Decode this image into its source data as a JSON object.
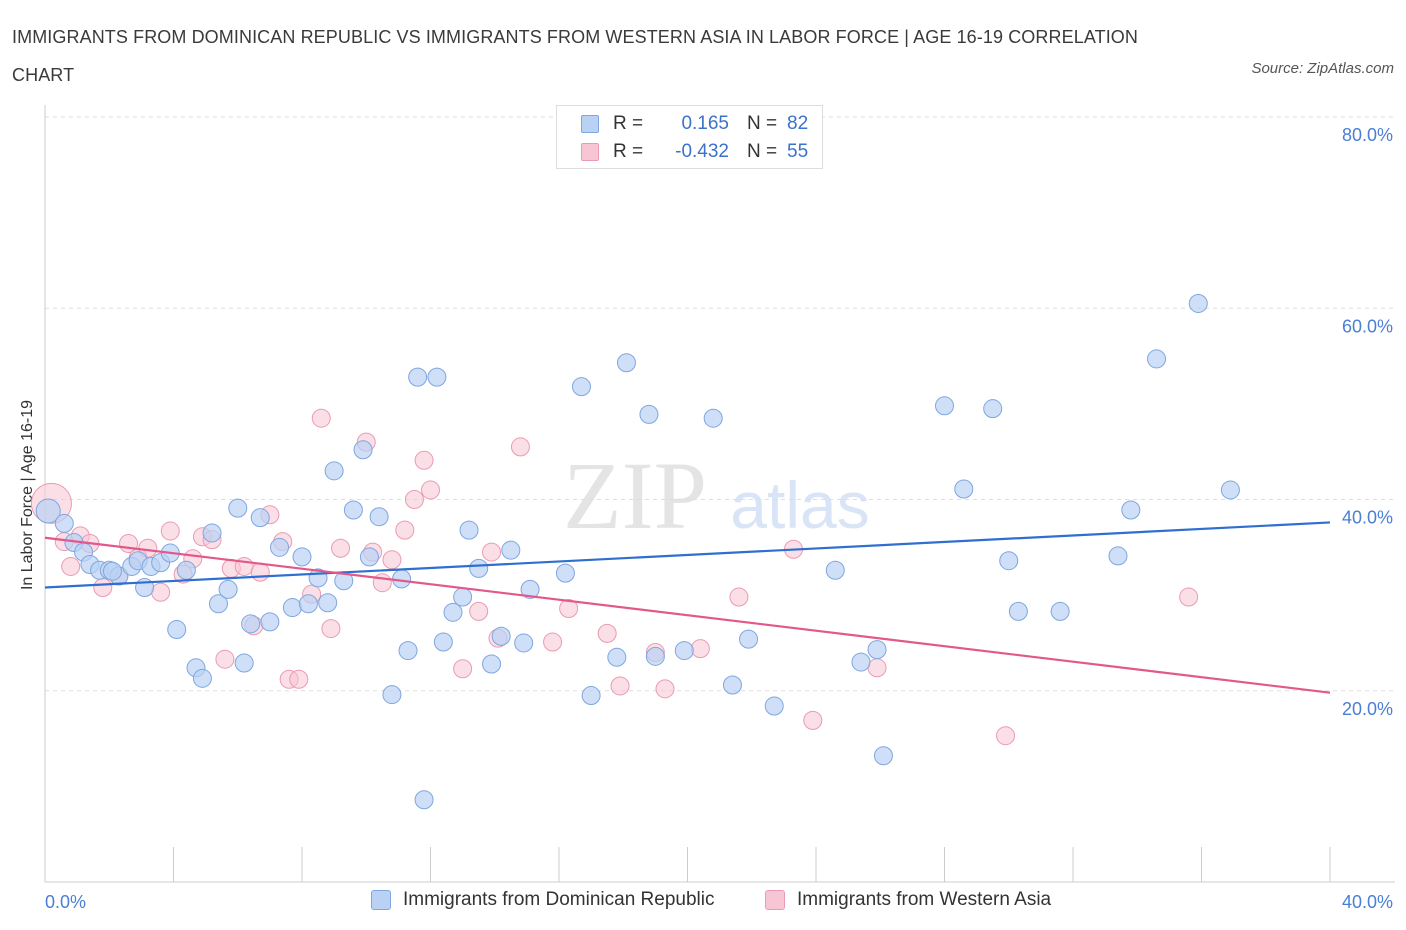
{
  "title": "IMMIGRANTS FROM DOMINICAN REPUBLIC VS IMMIGRANTS FROM WESTERN ASIA IN LABOR FORCE | AGE 16-19 CORRELATION CHART",
  "source": "Source: ZipAtlas.com",
  "watermark": {
    "zip": "ZIP",
    "atlas": "atlas"
  },
  "legend": {
    "rows": [
      {
        "r_label": "R =",
        "r_value": "0.165",
        "n_label": "N =",
        "n_value": "82"
      },
      {
        "r_label": "R =",
        "r_value": "-0.432",
        "n_label": "N =",
        "n_value": "55"
      }
    ]
  },
  "colors": {
    "blue_fill": "#b9d1f3",
    "blue_stroke": "#7fa6e0",
    "blue_line": "#2f6fcf",
    "pink_fill": "#f8c5d4",
    "pink_stroke": "#eb9ab3",
    "pink_line": "#e2588a",
    "grid": "#dddddd",
    "tick_text": "#4a7fd4"
  },
  "chart_data": {
    "type": "scatter",
    "title": "IMMIGRANTS FROM DOMINICAN REPUBLIC VS IMMIGRANTS FROM WESTERN ASIA IN LABOR FORCE | AGE 16-19 CORRELATION CHART",
    "xlabel": "",
    "ylabel": "In Labor Force | Age 16-19",
    "xlim": [
      0,
      40
    ],
    "ylim": [
      0,
      80
    ],
    "x_tick_labels": [
      "0.0%",
      "40.0%"
    ],
    "y_ticks": [
      20,
      40,
      60,
      80
    ],
    "y_tick_labels": [
      "20.0%",
      "40.0%",
      "60.0%",
      "80.0%"
    ],
    "grid": true,
    "legend_position": "top-center",
    "series": [
      {
        "name": "Immigrants from Dominican Republic",
        "color": "#7fa6e0",
        "trend": {
          "x": [
            0,
            40
          ],
          "y": [
            30.8,
            37.6
          ]
        },
        "points": [
          [
            0.1,
            38.8
          ],
          [
            0.6,
            37.5
          ],
          [
            0.9,
            35.5
          ],
          [
            1.2,
            34.5
          ],
          [
            1.4,
            33.2
          ],
          [
            1.7,
            32.6
          ],
          [
            2.0,
            32.6
          ],
          [
            2.3,
            32.0
          ],
          [
            2.7,
            33.0
          ],
          [
            2.9,
            33.6
          ],
          [
            3.1,
            30.8
          ],
          [
            3.3,
            33.0
          ],
          [
            3.6,
            33.4
          ],
          [
            3.9,
            34.4
          ],
          [
            4.1,
            26.4
          ],
          [
            4.4,
            32.6
          ],
          [
            4.7,
            22.4
          ],
          [
            4.9,
            21.3
          ],
          [
            5.2,
            36.5
          ],
          [
            5.4,
            29.1
          ],
          [
            5.7,
            30.6
          ],
          [
            6.0,
            39.1
          ],
          [
            6.2,
            22.9
          ],
          [
            6.4,
            27.0
          ],
          [
            6.7,
            38.1
          ],
          [
            7.0,
            27.2
          ],
          [
            7.3,
            35.0
          ],
          [
            7.7,
            28.7
          ],
          [
            8.0,
            34.0
          ],
          [
            8.2,
            29.1
          ],
          [
            8.5,
            31.8
          ],
          [
            8.8,
            29.2
          ],
          [
            9.0,
            43.0
          ],
          [
            9.3,
            31.5
          ],
          [
            9.6,
            38.9
          ],
          [
            9.9,
            45.2
          ],
          [
            10.1,
            34.0
          ],
          [
            10.4,
            38.2
          ],
          [
            10.8,
            19.6
          ],
          [
            11.1,
            31.7
          ],
          [
            11.3,
            24.2
          ],
          [
            11.6,
            52.8
          ],
          [
            11.8,
            8.6
          ],
          [
            12.2,
            52.8
          ],
          [
            12.4,
            25.1
          ],
          [
            12.7,
            28.2
          ],
          [
            13.0,
            29.8
          ],
          [
            13.2,
            36.8
          ],
          [
            13.5,
            32.8
          ],
          [
            13.9,
            22.8
          ],
          [
            14.2,
            25.7
          ],
          [
            14.5,
            34.7
          ],
          [
            14.9,
            25.0
          ],
          [
            15.1,
            30.6
          ],
          [
            16.2,
            32.3
          ],
          [
            16.7,
            51.8
          ],
          [
            17.0,
            19.5
          ],
          [
            17.8,
            23.5
          ],
          [
            18.1,
            54.3
          ],
          [
            18.8,
            48.9
          ],
          [
            19.0,
            23.6
          ],
          [
            19.9,
            24.2
          ],
          [
            20.8,
            48.5
          ],
          [
            21.4,
            20.6
          ],
          [
            21.9,
            25.4
          ],
          [
            22.7,
            18.4
          ],
          [
            24.6,
            32.6
          ],
          [
            25.4,
            23.0
          ],
          [
            25.9,
            24.3
          ],
          [
            26.1,
            13.2
          ],
          [
            28.0,
            49.8
          ],
          [
            28.6,
            41.1
          ],
          [
            29.5,
            49.5
          ],
          [
            30.0,
            33.6
          ],
          [
            30.3,
            28.3
          ],
          [
            31.6,
            28.3
          ],
          [
            33.4,
            34.1
          ],
          [
            33.8,
            38.9
          ],
          [
            34.6,
            54.7
          ],
          [
            35.9,
            60.5
          ],
          [
            36.9,
            41.0
          ],
          [
            2.1,
            32.5
          ]
        ]
      },
      {
        "name": "Immigrants from Western Asia",
        "color": "#eb9ab3",
        "trend": {
          "x": [
            0,
            40
          ],
          "y": [
            36.0,
            19.8
          ]
        },
        "points": [
          [
            0.2,
            39.6
          ],
          [
            0.6,
            35.6
          ],
          [
            0.8,
            33.0
          ],
          [
            1.1,
            36.2
          ],
          [
            1.4,
            35.4
          ],
          [
            1.8,
            30.8
          ],
          [
            2.3,
            32.0
          ],
          [
            2.6,
            35.4
          ],
          [
            2.9,
            33.9
          ],
          [
            3.2,
            34.9
          ],
          [
            3.6,
            30.3
          ],
          [
            3.9,
            36.7
          ],
          [
            4.3,
            32.2
          ],
          [
            4.6,
            33.8
          ],
          [
            4.9,
            36.1
          ],
          [
            5.2,
            35.8
          ],
          [
            5.6,
            23.3
          ],
          [
            5.8,
            32.8
          ],
          [
            6.2,
            33.0
          ],
          [
            6.5,
            26.8
          ],
          [
            6.7,
            32.4
          ],
          [
            7.0,
            38.4
          ],
          [
            7.4,
            35.6
          ],
          [
            7.6,
            21.2
          ],
          [
            7.9,
            21.2
          ],
          [
            8.3,
            30.1
          ],
          [
            8.6,
            48.5
          ],
          [
            8.9,
            26.5
          ],
          [
            9.2,
            34.9
          ],
          [
            10.0,
            46.0
          ],
          [
            10.2,
            34.5
          ],
          [
            10.5,
            31.3
          ],
          [
            10.8,
            33.7
          ],
          [
            11.2,
            36.8
          ],
          [
            11.5,
            40.0
          ],
          [
            11.8,
            44.1
          ],
          [
            12.0,
            41.0
          ],
          [
            13.0,
            22.3
          ],
          [
            13.5,
            28.3
          ],
          [
            13.9,
            34.5
          ],
          [
            14.1,
            25.5
          ],
          [
            14.8,
            45.5
          ],
          [
            15.8,
            25.1
          ],
          [
            16.3,
            28.6
          ],
          [
            17.5,
            26.0
          ],
          [
            17.9,
            20.5
          ],
          [
            19.0,
            24.0
          ],
          [
            19.3,
            20.2
          ],
          [
            20.4,
            24.4
          ],
          [
            21.6,
            29.8
          ],
          [
            23.3,
            34.8
          ],
          [
            23.9,
            16.9
          ],
          [
            25.9,
            22.4
          ],
          [
            29.9,
            15.3
          ],
          [
            35.6,
            29.8
          ]
        ]
      }
    ]
  },
  "bottom_legend": [
    {
      "label": "Immigrants from Dominican Republic"
    },
    {
      "label": "Immigrants from Western Asia"
    }
  ]
}
